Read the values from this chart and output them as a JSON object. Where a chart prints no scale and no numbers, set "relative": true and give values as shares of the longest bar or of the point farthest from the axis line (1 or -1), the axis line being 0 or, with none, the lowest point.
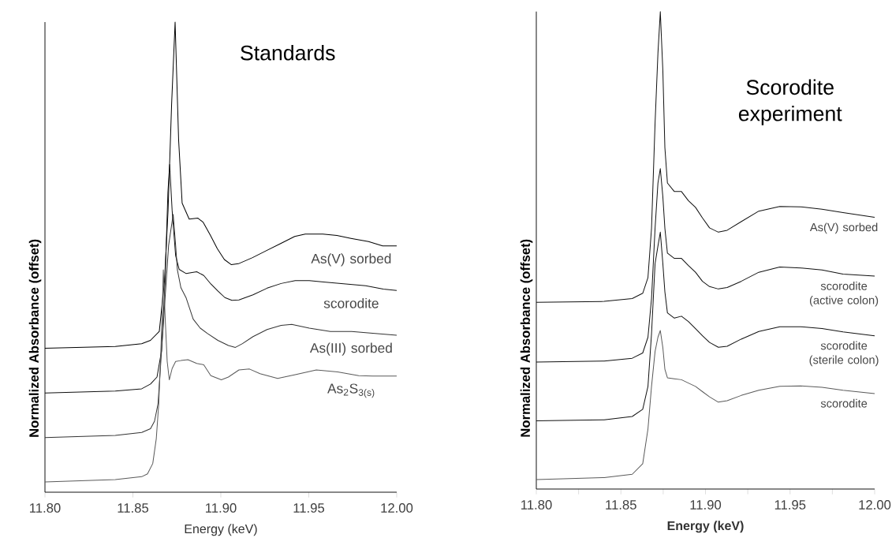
{
  "chart_data": [
    {
      "type": "line",
      "title": "Standards",
      "xlabel": "Energy (keV)",
      "ylabel": "Normalized Absorbance (offset)",
      "relative": true,
      "marker": "none",
      "xlim": [
        11.8,
        12.0
      ],
      "xticks": [
        {
          "value": 11.8,
          "label": "11.80"
        },
        {
          "value": 11.85,
          "label": "11.85"
        },
        {
          "value": 11.9,
          "label": "11.90"
        },
        {
          "value": 11.95,
          "label": "11.95"
        },
        {
          "value": 12.0,
          "label": "12.00"
        }
      ],
      "series": [
        {
          "name": "As(V) sorbed",
          "color": "#000000",
          "x": [
            11.8,
            11.84,
            11.855,
            11.86,
            11.865,
            11.868,
            11.87,
            11.872,
            11.874,
            11.876,
            11.878,
            11.882,
            11.887,
            11.89,
            11.894,
            11.898,
            11.902,
            11.906,
            11.91,
            11.918,
            11.926,
            11.934,
            11.942,
            11.948,
            11.958,
            11.966,
            11.974,
            11.984,
            11.992,
            12.0
          ],
          "values": [
            0.306,
            0.31,
            0.316,
            0.323,
            0.342,
            0.45,
            0.6,
            0.824,
            1.0,
            0.749,
            0.615,
            0.581,
            0.583,
            0.574,
            0.547,
            0.518,
            0.495,
            0.484,
            0.486,
            0.499,
            0.514,
            0.529,
            0.544,
            0.549,
            0.549,
            0.546,
            0.54,
            0.533,
            0.524,
            0.524
          ]
        },
        {
          "name": "scorodite",
          "color": "#111111",
          "x": [
            11.8,
            11.84,
            11.855,
            11.86,
            11.8637,
            11.8663,
            11.8683,
            11.8699,
            11.8709,
            11.8723,
            11.8743,
            11.8763,
            11.8803,
            11.8863,
            11.8903,
            11.8943,
            11.8983,
            11.9023,
            11.9063,
            11.9103,
            11.9183,
            11.9263,
            11.9343,
            11.9423,
            11.9503,
            11.9584,
            11.9704,
            11.9824,
            11.9924,
            12.0
          ],
          "values": [
            0.211,
            0.215,
            0.22,
            0.23,
            0.245,
            0.301,
            0.45,
            0.637,
            0.697,
            0.6,
            0.503,
            0.474,
            0.465,
            0.469,
            0.461,
            0.443,
            0.428,
            0.414,
            0.408,
            0.409,
            0.42,
            0.434,
            0.444,
            0.45,
            0.45,
            0.447,
            0.443,
            0.439,
            0.432,
            0.429
          ]
        },
        {
          "name": "As(III) sorbed",
          "color": "#333333",
          "x": [
            11.8,
            11.84,
            11.855,
            11.86,
            11.8623,
            11.8643,
            11.8663,
            11.8683,
            11.8703,
            11.8729,
            11.8743,
            11.8753,
            11.8773,
            11.8803,
            11.8843,
            11.8883,
            11.8923,
            11.8983,
            11.9043,
            11.9083,
            11.9123,
            11.9183,
            11.9263,
            11.9343,
            11.9403,
            11.9503,
            11.9623,
            11.9744,
            11.9864,
            12.0
          ],
          "values": [
            0.116,
            0.121,
            0.127,
            0.135,
            0.151,
            0.188,
            0.301,
            0.413,
            0.525,
            0.591,
            0.525,
            0.473,
            0.435,
            0.413,
            0.368,
            0.349,
            0.338,
            0.323,
            0.312,
            0.308,
            0.316,
            0.331,
            0.346,
            0.355,
            0.357,
            0.349,
            0.342,
            0.342,
            0.338,
            0.334
          ]
        },
        {
          "name": "As$_{2}$S$_{3(s)}$",
          "color": "#5a5a5a",
          "x": [
            11.8,
            11.84,
            11.855,
            11.8583,
            11.8613,
            11.8633,
            11.8647,
            11.8659,
            11.8667,
            11.8673,
            11.8683,
            11.8695,
            11.8707,
            11.8723,
            11.8743,
            11.8773,
            11.8813,
            11.8863,
            11.8903,
            11.8943,
            11.9003,
            11.9043,
            11.9103,
            11.9163,
            11.9223,
            11.9323,
            11.9423,
            11.9543,
            11.9664,
            11.9784,
            11.9864,
            12.0
          ],
          "values": [
            0.022,
            0.027,
            0.033,
            0.039,
            0.061,
            0.114,
            0.188,
            0.301,
            0.39,
            0.473,
            0.375,
            0.278,
            0.239,
            0.263,
            0.278,
            0.28,
            0.282,
            0.274,
            0.271,
            0.248,
            0.239,
            0.245,
            0.26,
            0.262,
            0.252,
            0.242,
            0.25,
            0.26,
            0.256,
            0.248,
            0.247,
            0.247
          ]
        }
      ]
    },
    {
      "type": "line",
      "title": "Scorodite experiment",
      "xlabel": "Energy (keV)",
      "ylabel": "Normalized Absorbance (offset)",
      "relative": true,
      "marker": "none",
      "xlim": [
        11.8,
        12.0
      ],
      "xticks": [
        {
          "value": 11.8,
          "label": "11.80"
        },
        {
          "value": 11.825,
          "label": null
        },
        {
          "value": 11.85,
          "label": "11.85"
        },
        {
          "value": 11.875,
          "label": null
        },
        {
          "value": 11.9,
          "label": "11.90"
        },
        {
          "value": 11.925,
          "label": null
        },
        {
          "value": 11.95,
          "label": "11.95"
        },
        {
          "value": 11.975,
          "label": null
        },
        {
          "value": 12.0,
          "label": "12.00"
        }
      ],
      "x": [
        11.8,
        11.8401,
        11.8567,
        11.8629,
        11.866,
        11.8681,
        11.8702,
        11.8719,
        11.8733,
        11.8748,
        11.876,
        11.8775,
        11.8816,
        11.8858,
        11.8899,
        11.8941,
        11.8982,
        11.9024,
        11.9076,
        11.9128,
        11.9211,
        11.9315,
        11.9439,
        11.9564,
        11.9689,
        11.9813,
        12.0
      ],
      "series": [
        {
          "name": "As(V) sorbed",
          "color": "#111111",
          "values": [
            0.391,
            0.393,
            0.399,
            0.41,
            0.443,
            0.546,
            0.766,
            0.913,
            1.0,
            0.876,
            0.715,
            0.641,
            0.623,
            0.623,
            0.604,
            0.59,
            0.568,
            0.547,
            0.538,
            0.542,
            0.56,
            0.582,
            0.592,
            0.591,
            0.586,
            0.579,
            0.569
          ]
        },
        {
          "name": "scorodite (active colon)",
          "color": "#111111",
          "values": [
            0.266,
            0.268,
            0.274,
            0.285,
            0.318,
            0.399,
            0.546,
            0.641,
            0.671,
            0.612,
            0.546,
            0.494,
            0.483,
            0.483,
            0.468,
            0.454,
            0.435,
            0.424,
            0.419,
            0.422,
            0.435,
            0.454,
            0.465,
            0.463,
            0.459,
            0.45,
            0.446
          ]
        },
        {
          "name": "scorodite (sterile colon)",
          "color": "#111111",
          "values": [
            0.143,
            0.145,
            0.152,
            0.167,
            0.215,
            0.325,
            0.472,
            0.509,
            0.538,
            0.472,
            0.413,
            0.369,
            0.358,
            0.362,
            0.351,
            0.336,
            0.321,
            0.307,
            0.297,
            0.299,
            0.314,
            0.33,
            0.34,
            0.34,
            0.336,
            0.329,
            0.321
          ]
        },
        {
          "name": "scorodite",
          "color": "#5a5a5a",
          "values": [
            0.02,
            0.024,
            0.031,
            0.053,
            0.126,
            0.215,
            0.288,
            0.318,
            0.332,
            0.296,
            0.251,
            0.233,
            0.231,
            0.229,
            0.222,
            0.215,
            0.204,
            0.193,
            0.182,
            0.185,
            0.196,
            0.207,
            0.215,
            0.216,
            0.213,
            0.207,
            0.2
          ]
        }
      ]
    }
  ]
}
